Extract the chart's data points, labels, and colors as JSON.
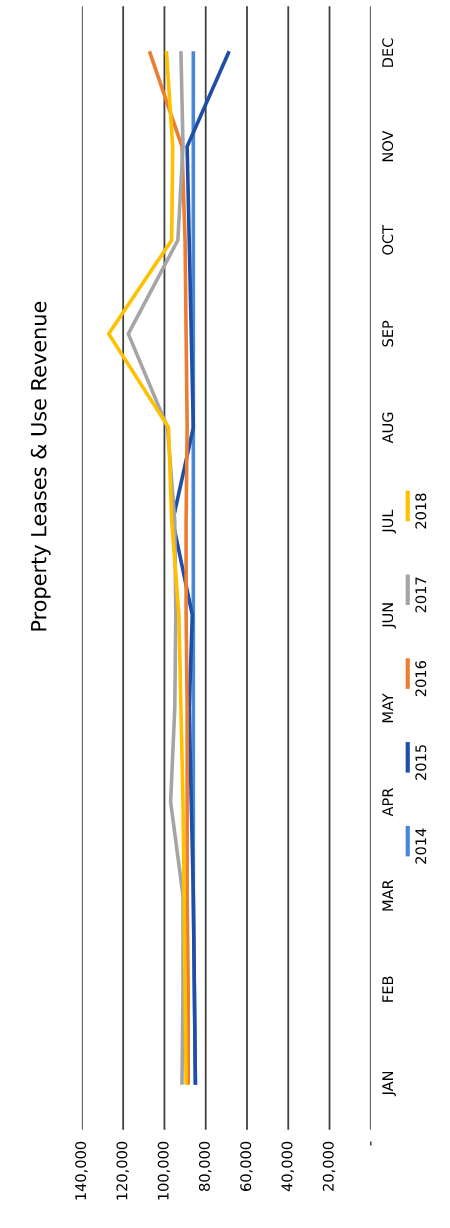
{
  "chart_data": {
    "type": "line",
    "title": "Property Leases & Use Revenue",
    "orientation": "horizontal",
    "categories": [
      "DEC",
      "NOV",
      "OCT",
      "SEP",
      "AUG",
      "JUL",
      "JUN",
      "MAY",
      "APR",
      "MAR",
      "FEB",
      "JAN"
    ],
    "series": [
      {
        "name": "2014",
        "color": "#4a86d8",
        "values": [
          86000,
          86000,
          86000,
          86000,
          86000,
          86000,
          86000,
          86000,
          86000,
          86000,
          85500,
          85000
        ]
      },
      {
        "name": "2015",
        "color": "#1f4ea8",
        "values": [
          69000,
          89000,
          88000,
          87000,
          86000,
          96000,
          86500,
          88000,
          87000,
          86000,
          85500,
          85000
        ]
      },
      {
        "name": "2016",
        "color": "#ed7d31",
        "values": [
          107000,
          91500,
          90000,
          89500,
          89000,
          89500,
          89500,
          89000,
          89000,
          89000,
          88500,
          88500
        ]
      },
      {
        "name": "2017",
        "color": "#a5a5a5",
        "values": [
          92000,
          91000,
          93500,
          117500,
          98500,
          95000,
          94500,
          95000,
          97000,
          91000,
          91000,
          91500
        ]
      },
      {
        "name": "2018",
        "color": "#ffc000",
        "values": [
          99000,
          96000,
          96500,
          127000,
          98000,
          96500,
          93000,
          92000,
          91000,
          90500,
          90000,
          89500
        ]
      }
    ],
    "xlim": [
      140000,
      0
    ],
    "xticks": [
      {
        "value": 140000,
        "label": "140,000"
      },
      {
        "value": 120000,
        "label": "120,000"
      },
      {
        "value": 100000,
        "label": "100,000"
      },
      {
        "value": 80000,
        "label": "80,000"
      },
      {
        "value": 60000,
        "label": "60,000"
      },
      {
        "value": 40000,
        "label": "40,000"
      },
      {
        "value": 20000,
        "label": "20,000"
      },
      {
        "value": 0,
        "label": "-"
      }
    ],
    "grid": "x",
    "legend": "right"
  }
}
